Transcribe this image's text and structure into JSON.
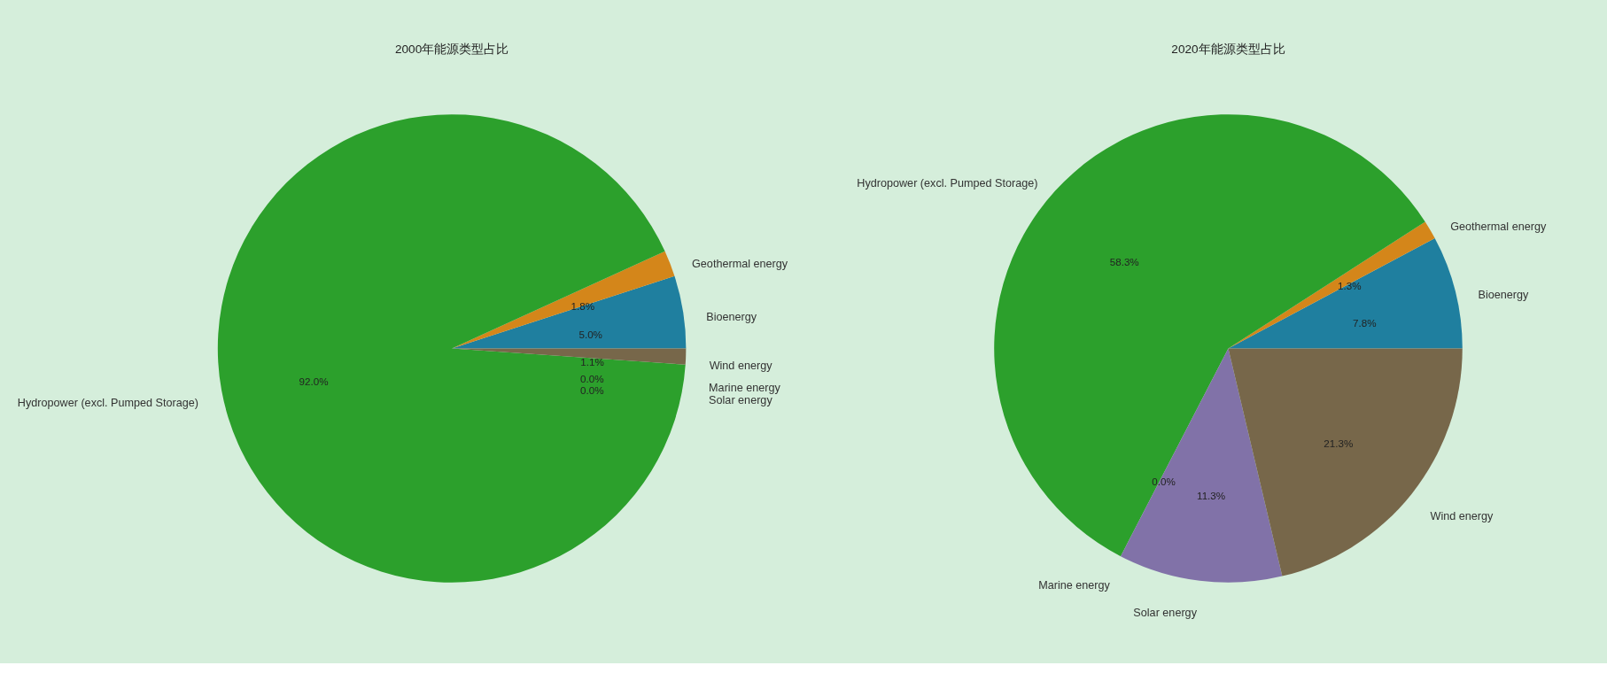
{
  "chart_data": [
    {
      "type": "pie",
      "title": "2000年能源类型占比",
      "categories": [
        "Bioenergy",
        "Geothermal energy",
        "Hydropower (excl. Pumped Storage)",
        "Marine energy",
        "Solar energy",
        "Wind energy"
      ],
      "values": [
        5.0,
        1.8,
        92.0,
        0.0,
        0.0,
        1.1
      ],
      "colors": [
        "#1f7f9f",
        "#d4861a",
        "#2ca02c",
        "#c44e52",
        "#8172a8",
        "#77674a"
      ],
      "value_labels": [
        "5.0%",
        "1.8%",
        "92.0%",
        "0.0%",
        "0.0%",
        "1.1%"
      ]
    },
    {
      "type": "pie",
      "title": "2020年能源类型占比",
      "categories": [
        "Bioenergy",
        "Geothermal energy",
        "Hydropower (excl. Pumped Storage)",
        "Marine energy",
        "Solar energy",
        "Wind energy"
      ],
      "values": [
        7.8,
        1.3,
        58.3,
        0.0,
        11.3,
        21.3
      ],
      "colors": [
        "#1f7f9f",
        "#d4861a",
        "#2ca02c",
        "#c44e52",
        "#8172a8",
        "#77674a"
      ],
      "value_labels": [
        "7.8%",
        "1.3%",
        "58.3%",
        "0.0%",
        "11.3%",
        "21.3%"
      ]
    }
  ]
}
